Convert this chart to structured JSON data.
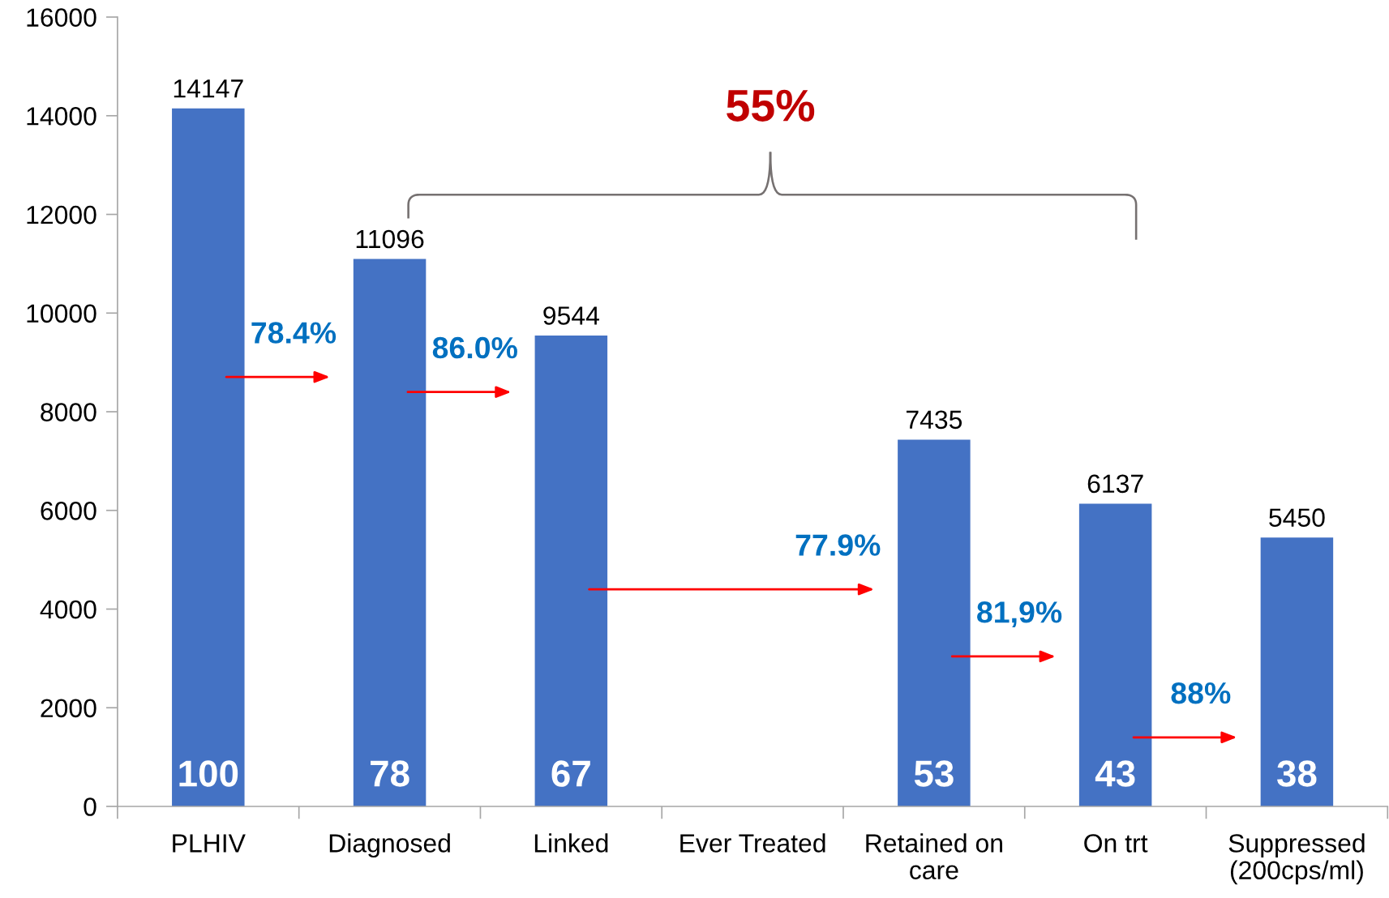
{
  "chart_data": {
    "type": "bar",
    "categories": [
      "PLHIV",
      "Diagnosed",
      "Linked",
      "Ever Treated",
      "Retained on\ncare",
      "On trt",
      "Suppressed\n(200cps/ml)"
    ],
    "values": [
      14147,
      11096,
      9544,
      null,
      7435,
      6137,
      5450
    ],
    "color": "#4472c4",
    "ylim": [
      0,
      16000
    ],
    "yticks": [
      0,
      2000,
      4000,
      6000,
      8000,
      10000,
      12000,
      14000,
      16000
    ],
    "grid": false,
    "data_labels": true,
    "annotations": [
      "100",
      "78",
      "67",
      "53",
      "43",
      "38",
      "78.4%",
      "86.0%",
      "77.9%",
      "81,9%",
      "88%",
      "55%"
    ]
  }
}
